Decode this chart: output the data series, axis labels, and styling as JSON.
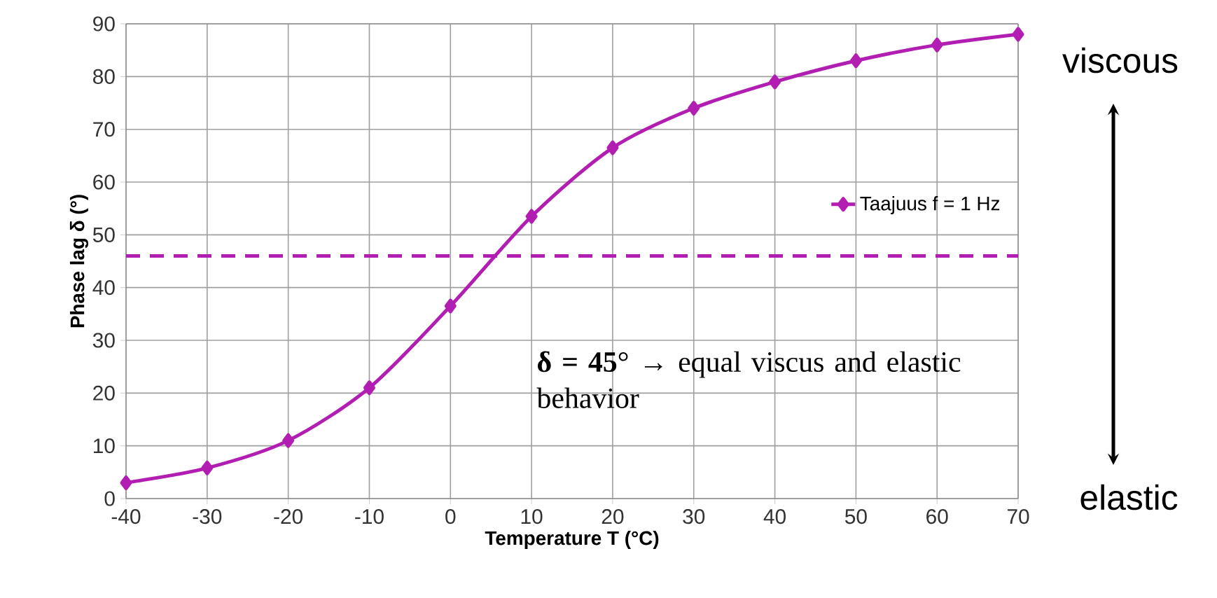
{
  "chart_data": {
    "type": "line",
    "xlabel": "Temperature T (°C)",
    "ylabel": "Phase lag δ (°)",
    "x": [
      -40,
      -30,
      -20,
      -10,
      0,
      10,
      20,
      30,
      40,
      50,
      60,
      70
    ],
    "series": [
      {
        "name": "Taajuus f = 1 Hz",
        "color": "#b21db2",
        "values": [
          3,
          5.8,
          11,
          21,
          36.5,
          53.5,
          66.5,
          74,
          79,
          83,
          86,
          88
        ]
      }
    ],
    "xlim": [
      -40,
      70
    ],
    "xticks": [
      -40,
      -30,
      -20,
      -10,
      0,
      10,
      20,
      30,
      40,
      50,
      60,
      70
    ],
    "ylim": [
      0,
      90
    ],
    "yticks": [
      0,
      10,
      20,
      30,
      40,
      50,
      60,
      70,
      80,
      90
    ],
    "grid": true,
    "legend": "right",
    "marker": "diamond",
    "line_style": "solid",
    "ref_lines": [
      {
        "axis": "y",
        "value": 46,
        "color": "#b21db2",
        "line_style": "dashed"
      }
    ],
    "annotations": [
      "**δ = 45**° → equal viscus and elastic behavior",
      "viscous",
      "elastic"
    ]
  }
}
